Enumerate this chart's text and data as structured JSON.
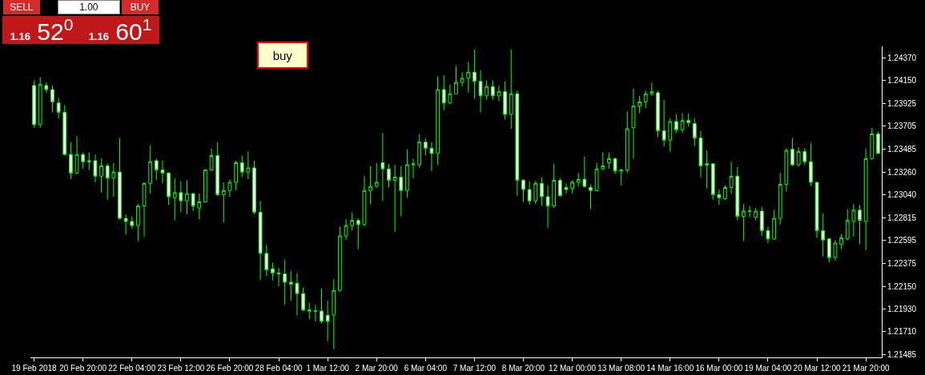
{
  "chart_data": {
    "type": "candlestick",
    "color": "#00ff00",
    "categories": [
      "19 Feb 2018",
      null,
      null,
      null,
      null,
      null,
      null,
      null,
      "20 Feb 20:00",
      null,
      null,
      null,
      null,
      null,
      null,
      null,
      "22 Feb 04:00",
      null,
      null,
      null,
      null,
      null,
      null,
      null,
      "23 Feb 12:00",
      null,
      null,
      null,
      null,
      null,
      null,
      null,
      "26 Feb 20:00",
      null,
      null,
      null,
      null,
      null,
      null,
      null,
      "28 Feb 04:00",
      null,
      null,
      null,
      null,
      null,
      null,
      null,
      "1 Mar 12:00",
      null,
      null,
      null,
      null,
      null,
      null,
      null,
      "2 Mar 20:00",
      null,
      null,
      null,
      null,
      null,
      null,
      null,
      "6 Mar 04:00",
      null,
      null,
      null,
      null,
      null,
      null,
      null,
      "7 Mar 12:00",
      null,
      null,
      null,
      null,
      null,
      null,
      null,
      "8 Mar 20:00",
      null,
      null,
      null,
      null,
      null,
      null,
      null,
      "12 Mar 00:00",
      null,
      null,
      null,
      null,
      null,
      null,
      null,
      "13 Mar 08:00",
      null,
      null,
      null,
      null,
      null,
      null,
      null,
      "14 Mar 16:00",
      null,
      null,
      null,
      null,
      null,
      null,
      null,
      "16 Mar 00:00",
      null,
      null,
      null,
      null,
      null,
      null,
      null,
      "19 Mar 04:00",
      null,
      null,
      null,
      null,
      null,
      null,
      null,
      "20 Mar 12:00",
      null,
      null,
      null,
      null,
      null,
      null,
      null,
      "21 Mar 20:00",
      null,
      null
    ],
    "ohlc": [
      [
        1.241,
        1.2415,
        1.2369,
        1.2372
      ],
      [
        1.2372,
        1.2418,
        1.2369,
        1.2411
      ],
      [
        1.241,
        1.2413,
        1.2403,
        1.2406
      ],
      [
        1.2406,
        1.241,
        1.2384,
        1.2394
      ],
      [
        1.2393,
        1.2398,
        1.2378,
        1.2384
      ],
      [
        1.2384,
        1.2391,
        1.2342,
        1.2343
      ],
      [
        1.2343,
        1.2355,
        1.2319,
        1.2325
      ],
      [
        1.2325,
        1.2361,
        1.2324,
        1.2343
      ],
      [
        1.2343,
        1.2345,
        1.2329,
        1.2336
      ],
      [
        1.2337,
        1.2345,
        1.2328,
        1.2336
      ],
      [
        1.2337,
        1.2343,
        1.2316,
        1.2322
      ],
      [
        1.2322,
        1.2339,
        1.2306,
        1.2332
      ],
      [
        1.2332,
        1.2334,
        1.2299,
        1.232
      ],
      [
        1.232,
        1.2335,
        1.2302,
        1.2326
      ],
      [
        1.2326,
        1.2359,
        1.228,
        1.2281
      ],
      [
        1.2281,
        1.2285,
        1.2265,
        1.2278
      ],
      [
        1.2278,
        1.2283,
        1.2271,
        1.2274
      ],
      [
        1.2274,
        1.2295,
        1.2259,
        1.2293
      ],
      [
        1.2293,
        1.2316,
        1.2263,
        1.2315
      ],
      [
        1.2315,
        1.2352,
        1.2305,
        1.2336
      ],
      [
        1.2337,
        1.2339,
        1.2318,
        1.2328
      ],
      [
        1.2328,
        1.2337,
        1.2315,
        1.2325
      ],
      [
        1.2325,
        1.2326,
        1.2294,
        1.2302
      ],
      [
        1.2301,
        1.232,
        1.2279,
        1.2306
      ],
      [
        1.2306,
        1.2317,
        1.2287,
        1.2298
      ],
      [
        1.2298,
        1.2318,
        1.2285,
        1.2305
      ],
      [
        1.2305,
        1.2306,
        1.2288,
        1.2293
      ],
      [
        1.2291,
        1.2305,
        1.228,
        1.2297
      ],
      [
        1.2297,
        1.2328,
        1.2297,
        1.2328
      ],
      [
        1.2328,
        1.2349,
        1.2327,
        1.2342
      ],
      [
        1.2342,
        1.2355,
        1.2303,
        1.2304
      ],
      [
        1.2304,
        1.2316,
        1.2277,
        1.2308
      ],
      [
        1.2308,
        1.2319,
        1.2302,
        1.2316
      ],
      [
        1.2316,
        1.2337,
        1.2308,
        1.2335
      ],
      [
        1.2335,
        1.2342,
        1.2321,
        1.2326
      ],
      [
        1.2326,
        1.2346,
        1.2319,
        1.233
      ],
      [
        1.233,
        1.2337,
        1.2285,
        1.2287
      ],
      [
        1.2287,
        1.2298,
        1.2221,
        1.2247
      ],
      [
        1.2247,
        1.2255,
        1.2225,
        1.2231
      ],
      [
        1.2232,
        1.2238,
        1.2221,
        1.2228
      ],
      [
        1.2228,
        1.2233,
        1.2215,
        1.2227
      ],
      [
        1.2227,
        1.2241,
        1.2197,
        1.2219
      ],
      [
        1.2219,
        1.223,
        1.2201,
        1.2217
      ],
      [
        1.2218,
        1.2228,
        1.2187,
        1.2208
      ],
      [
        1.2208,
        1.2214,
        1.2191,
        1.2192
      ],
      [
        1.2192,
        1.2199,
        1.2183,
        1.2191
      ],
      [
        1.2191,
        1.2197,
        1.2181,
        1.2191
      ],
      [
        1.2191,
        1.2213,
        1.2179,
        1.2181
      ],
      [
        1.2187,
        1.2201,
        1.2162,
        1.2181
      ],
      [
        1.2187,
        1.2222,
        1.2154,
        1.2211
      ],
      [
        1.2211,
        1.2273,
        1.221,
        1.2264
      ],
      [
        1.2264,
        1.228,
        1.226,
        1.2274
      ],
      [
        1.2274,
        1.2287,
        1.2269,
        1.2279
      ],
      [
        1.2279,
        1.2281,
        1.2251,
        1.2275
      ],
      [
        1.2275,
        1.2322,
        1.2273,
        1.2308
      ],
      [
        1.2308,
        1.2332,
        1.2295,
        1.2312
      ],
      [
        1.2312,
        1.2335,
        1.2311,
        1.2316
      ],
      [
        1.2335,
        1.2364,
        1.2298,
        1.2329
      ],
      [
        1.2329,
        1.2334,
        1.2311,
        1.2318
      ],
      [
        1.2318,
        1.2333,
        1.2268,
        1.2321
      ],
      [
        1.2321,
        1.2332,
        1.2283,
        1.2308
      ],
      [
        1.2308,
        1.2348,
        1.2301,
        1.2333
      ],
      [
        1.2333,
        1.2339,
        1.232,
        1.2334
      ],
      [
        1.2333,
        1.2363,
        1.233,
        1.2355
      ],
      [
        1.2355,
        1.2359,
        1.2342,
        1.2349
      ],
      [
        1.2349,
        1.2355,
        1.2327,
        1.2344
      ],
      [
        1.2344,
        1.2419,
        1.2333,
        1.2406
      ],
      [
        1.2406,
        1.242,
        1.2386,
        1.2393
      ],
      [
        1.2393,
        1.2411,
        1.2392,
        1.2402
      ],
      [
        1.2402,
        1.2429,
        1.2402,
        1.2413
      ],
      [
        1.2413,
        1.2423,
        1.2409,
        1.2417
      ],
      [
        1.2417,
        1.2433,
        1.2403,
        1.2423
      ],
      [
        1.2423,
        1.2445,
        1.2397,
        1.2414
      ],
      [
        1.2414,
        1.2425,
        1.2384,
        1.24
      ],
      [
        1.24,
        1.2415,
        1.2396,
        1.2409
      ],
      [
        1.2409,
        1.2415,
        1.2396,
        1.24
      ],
      [
        1.24,
        1.241,
        1.2395,
        1.2404
      ],
      [
        1.2404,
        1.2414,
        1.2377,
        1.2382
      ],
      [
        1.2382,
        1.2445,
        1.2368,
        1.2402
      ],
      [
        1.2402,
        1.2405,
        1.2303,
        1.2318
      ],
      [
        1.2318,
        1.2319,
        1.2297,
        1.2309
      ],
      [
        1.2309,
        1.2317,
        1.2294,
        1.2298
      ],
      [
        1.2298,
        1.2317,
        1.2295,
        1.2315
      ],
      [
        1.2315,
        1.2321,
        1.2293,
        1.2302
      ],
      [
        1.2302,
        1.2313,
        1.2272,
        1.2293
      ],
      [
        1.2293,
        1.2334,
        1.2291,
        1.2318
      ],
      [
        1.2318,
        1.232,
        1.2302,
        1.2303
      ],
      [
        1.2311,
        1.2315,
        1.2305,
        1.2309
      ],
      [
        1.231,
        1.2318,
        1.2305,
        1.2316
      ],
      [
        1.2316,
        1.2325,
        1.2312,
        1.2319
      ],
      [
        1.2319,
        1.2341,
        1.2311,
        1.2312
      ],
      [
        1.2311,
        1.2314,
        1.229,
        1.2308
      ],
      [
        1.2308,
        1.2335,
        1.2307,
        1.2329
      ],
      [
        1.2329,
        1.2345,
        1.2328,
        1.2332
      ],
      [
        1.2335,
        1.2345,
        1.2329,
        1.2339
      ],
      [
        1.2339,
        1.234,
        1.2324,
        1.2327
      ],
      [
        1.2327,
        1.2329,
        1.2313,
        1.2328
      ],
      [
        1.2328,
        1.2385,
        1.2325,
        1.2368
      ],
      [
        1.2369,
        1.2407,
        1.2339,
        1.239
      ],
      [
        1.239,
        1.24,
        1.2383,
        1.2394
      ],
      [
        1.2394,
        1.2405,
        1.2388,
        1.2402
      ],
      [
        1.2402,
        1.2413,
        1.24,
        1.2404
      ],
      [
        1.2403,
        1.2405,
        1.236,
        1.2366
      ],
      [
        1.2366,
        1.2396,
        1.2351,
        1.2357
      ],
      [
        1.2357,
        1.2378,
        1.2346,
        1.2375
      ],
      [
        1.2375,
        1.2382,
        1.2364,
        1.2367
      ],
      [
        1.2367,
        1.2383,
        1.2364,
        1.2376
      ],
      [
        1.2376,
        1.2383,
        1.237,
        1.2374
      ],
      [
        1.2373,
        1.2378,
        1.2351,
        1.2359
      ],
      [
        1.2359,
        1.2366,
        1.2321,
        1.2332
      ],
      [
        1.2334,
        1.2347,
        1.231,
        1.2333
      ],
      [
        1.2334,
        1.2334,
        1.2299,
        1.2304
      ],
      [
        1.2304,
        1.2309,
        1.2294,
        1.2301
      ],
      [
        1.23,
        1.2313,
        1.2299,
        1.2311
      ],
      [
        1.2311,
        1.2336,
        1.2305,
        1.2322
      ],
      [
        1.2322,
        1.2331,
        1.2279,
        1.2283
      ],
      [
        1.2283,
        1.2295,
        1.2259,
        1.2288
      ],
      [
        1.2288,
        1.2293,
        1.2282,
        1.2288
      ],
      [
        1.2282,
        1.2291,
        1.2279,
        1.2288
      ],
      [
        1.2288,
        1.2292,
        1.2264,
        1.2269
      ],
      [
        1.2269,
        1.2273,
        1.2257,
        1.2261
      ],
      [
        1.2261,
        1.2289,
        1.226,
        1.2281
      ],
      [
        1.2281,
        1.2325,
        1.2275,
        1.2314
      ],
      [
        1.2314,
        1.2349,
        1.2307,
        1.2347
      ],
      [
        1.2348,
        1.2359,
        1.2332,
        1.2333
      ],
      [
        1.2333,
        1.235,
        1.2331,
        1.2346
      ],
      [
        1.2346,
        1.2349,
        1.2333,
        1.2336
      ],
      [
        1.2336,
        1.2354,
        1.2312,
        1.2316
      ],
      [
        1.2316,
        1.2316,
        1.2262,
        1.2269
      ],
      [
        1.2269,
        1.2286,
        1.2244,
        1.226
      ],
      [
        1.2261,
        1.2262,
        1.2238,
        1.2243
      ],
      [
        1.2243,
        1.226,
        1.224,
        1.2257
      ],
      [
        1.2256,
        1.2266,
        1.2251,
        1.2262
      ],
      [
        1.2261,
        1.229,
        1.226,
        1.2279
      ],
      [
        1.2278,
        1.2295,
        1.2263,
        1.2289
      ],
      [
        1.2289,
        1.2294,
        1.2256,
        1.2279
      ],
      [
        1.2278,
        1.2349,
        1.225,
        1.2339
      ],
      [
        1.2339,
        1.2369,
        1.2338,
        1.2363
      ],
      [
        1.2363,
        1.2365,
        1.2344,
        1.2344
      ]
    ],
    "ylim": [
      1.2146,
      1.2448
    ],
    "yticks": [
      {
        "value": 1.2437,
        "label": "1.24370"
      },
      {
        "value": 1.2415,
        "label": "1.24150"
      },
      {
        "value": 1.23925,
        "label": "1.23925"
      },
      {
        "value": 1.23705,
        "label": "1.23705"
      },
      {
        "value": 1.23485,
        "label": "1.23485"
      },
      {
        "value": 1.2326,
        "label": "1.23260"
      },
      {
        "value": 1.2304,
        "label": "1.23040"
      },
      {
        "value": 1.22815,
        "label": "1.22815"
      },
      {
        "value": 1.22595,
        "label": "1.22595"
      },
      {
        "value": 1.22375,
        "label": "1.22375"
      },
      {
        "value": 1.2215,
        "label": "1.22150"
      },
      {
        "value": 1.2193,
        "label": "1.21930"
      },
      {
        "value": 1.2171,
        "label": "1.21710"
      },
      {
        "value": 1.21485,
        "label": "1.21485"
      }
    ],
    "annotations": [
      "SELL",
      "1.00",
      "BUY",
      "1.16 52$^{0}$",
      "1.16 60$^{1}$",
      "buy"
    ]
  }
}
